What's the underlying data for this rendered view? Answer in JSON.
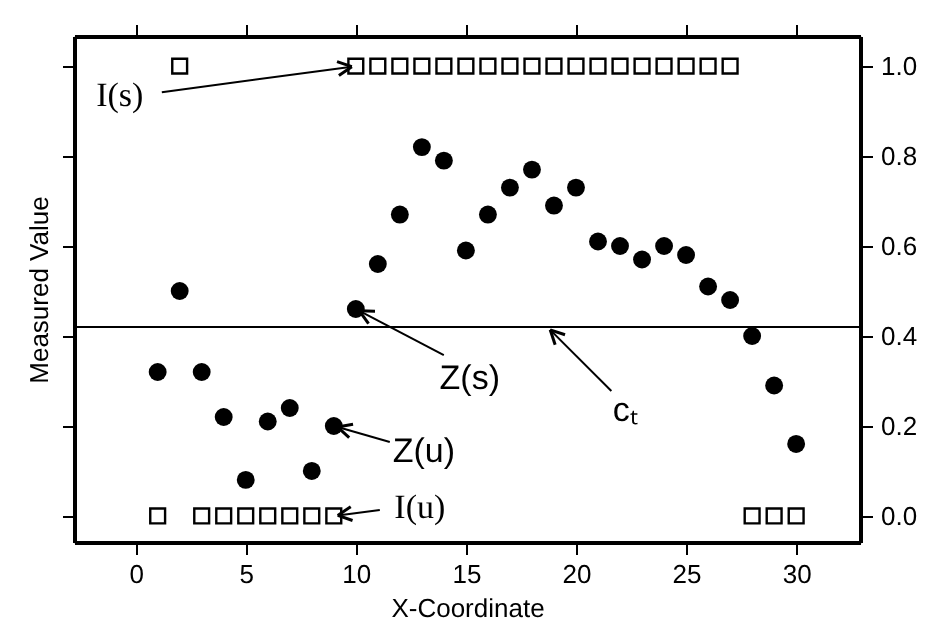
{
  "chart_data": {
    "type": "scatter",
    "xlabel": "X-Coordinate",
    "ylabel": "Measured Value",
    "xlim": [
      -2.8,
      32.9
    ],
    "xticks": [
      0,
      5,
      10,
      15,
      20,
      25,
      30
    ],
    "ylim": [
      -0.058,
      1.067
    ],
    "yticks": [
      {
        "value": 0,
        "label": "0.0"
      },
      {
        "value": 0.2,
        "label": "0.2"
      },
      {
        "value": 0.4,
        "label": "0.4"
      },
      {
        "value": 0.6,
        "label": "0.6"
      },
      {
        "value": 0.8,
        "label": "0.8"
      },
      {
        "value": 1,
        "label": "1.0"
      }
    ],
    "grid": false,
    "series": [
      {
        "color": "#000000",
        "marker": "circle",
        "x": [
          1,
          2,
          3,
          4,
          5,
          6,
          7,
          8,
          9,
          10,
          11,
          12,
          13,
          14,
          15,
          16,
          17,
          18,
          19,
          20,
          21,
          22,
          23,
          24,
          25,
          26,
          27,
          28,
          29,
          30
        ],
        "values": [
          0.32,
          0.5,
          0.32,
          0.22,
          0.08,
          0.21,
          0.24,
          0.1,
          0.2,
          0.46,
          0.56,
          0.67,
          0.82,
          0.79,
          0.59,
          0.67,
          0.73,
          0.77,
          0.69,
          0.73,
          0.61,
          0.6,
          0.57,
          0.6,
          0.58,
          0.51,
          0.48,
          0.4,
          0.29,
          0.16
        ]
      },
      {
        "color": "#000000",
        "marker": "square",
        "x": [
          1,
          2,
          3,
          4,
          5,
          6,
          7,
          8,
          9,
          10,
          11,
          12,
          13,
          14,
          15,
          16,
          17,
          18,
          19,
          20,
          21,
          22,
          23,
          24,
          25,
          26,
          27,
          28,
          29,
          30
        ],
        "values": [
          0,
          1,
          0,
          0,
          0,
          0,
          0,
          0,
          0,
          1,
          1,
          1,
          1,
          1,
          1,
          1,
          1,
          1,
          1,
          1,
          1,
          1,
          1,
          1,
          1,
          1,
          1,
          0,
          0,
          0
        ]
      }
    ],
    "ref_lines": [
      {
        "axis": "y",
        "value": 0.42,
        "color": "#000000"
      }
    ],
    "annotations": [
      {
        "text": "I(s)",
        "x": 10,
        "y": 1
      },
      {
        "text": "Z(s)",
        "x": 10,
        "y": 0.46
      },
      {
        "text": "Z(u)",
        "x": 9,
        "y": 0.2
      },
      {
        "text": "I(u)",
        "x": 9,
        "y": 0
      },
      {
        "text": "cₜ",
        "x": 18.7,
        "y": 0.42
      }
    ]
  }
}
